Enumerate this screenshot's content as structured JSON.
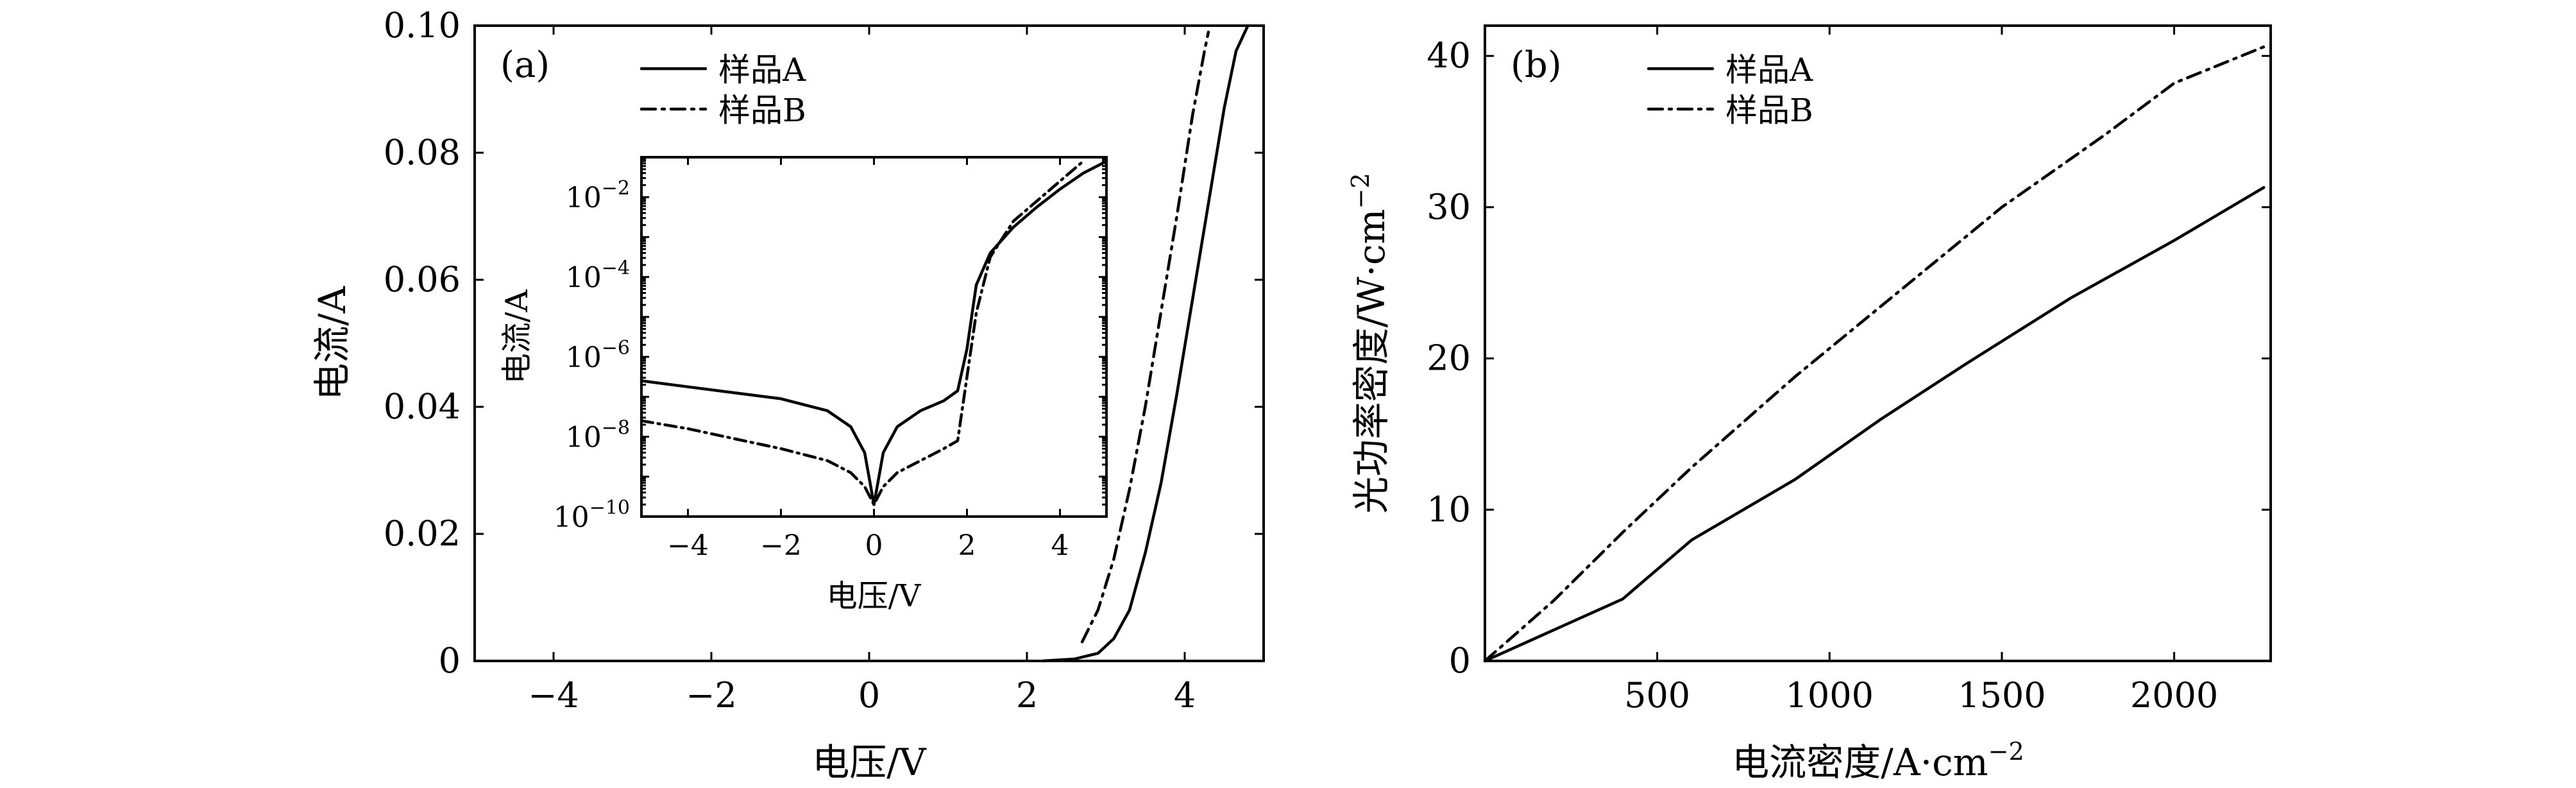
{
  "chart_data": [
    {
      "panel": "a",
      "type": "line",
      "label": "(a)",
      "xlabel": "电压/V",
      "ylabel": "电流/A",
      "xlim": [
        -5,
        5
      ],
      "ylim": [
        0,
        0.1
      ],
      "xticks": [
        -4,
        -2,
        0,
        2,
        4
      ],
      "xtick_labels": [
        "−4",
        "−2",
        "0",
        "2",
        "4"
      ],
      "yticks": [
        0,
        0.02,
        0.04,
        0.06,
        0.08,
        0.1
      ],
      "ytick_labels": [
        "0",
        "0.02",
        "0.04",
        "0.06",
        "0.08",
        "0.10"
      ],
      "legend": {
        "position": "top-left",
        "entries": [
          "样品A",
          "样品B"
        ]
      },
      "series": [
        {
          "name": "样品A",
          "style": "solid",
          "x": [
            2.2,
            2.6,
            2.9,
            3.1,
            3.3,
            3.5,
            3.7,
            3.9,
            4.1,
            4.3,
            4.5,
            4.65,
            4.8
          ],
          "y": [
            0,
            0.0003,
            0.0012,
            0.0035,
            0.008,
            0.017,
            0.028,
            0.042,
            0.057,
            0.072,
            0.087,
            0.096,
            0.1
          ]
        },
        {
          "name": "样品B",
          "style": "dashdot",
          "x": [
            2.7,
            2.9,
            3.1,
            3.3,
            3.5,
            3.7,
            3.9,
            4.1,
            4.25,
            4.3
          ],
          "y": [
            0.003,
            0.008,
            0.016,
            0.027,
            0.04,
            0.055,
            0.07,
            0.086,
            0.096,
            0.099
          ]
        }
      ],
      "inset": {
        "type": "line",
        "scale": "log",
        "xlabel": "电压/V",
        "ylabel": "电流/A",
        "xlim": [
          -5,
          5
        ],
        "ylim_exp": [
          -10,
          -1
        ],
        "xticks": [
          -4,
          -2,
          0,
          2,
          4
        ],
        "xtick_labels": [
          "−4",
          "−2",
          "0",
          "2",
          "4"
        ],
        "yticks_exp": [
          -10,
          -8,
          -6,
          -4,
          -2
        ],
        "ytick_mantissa": "10",
        "ytick_exponents": [
          "−10",
          "−8",
          "−6",
          "−4",
          "−2"
        ],
        "series": [
          {
            "name": "样品A",
            "style": "solid",
            "x": [
              -5,
              -4,
              -3,
              -2,
              -1,
              -0.5,
              -0.2,
              0,
              0.2,
              0.5,
              1,
              1.5,
              1.8,
              2.0,
              2.2,
              2.5,
              3,
              3.5,
              4,
              4.5,
              5
            ],
            "log10_y": [
              -6.6,
              -6.75,
              -6.9,
              -7.05,
              -7.35,
              -7.75,
              -8.4,
              -9.7,
              -8.4,
              -7.75,
              -7.35,
              -7.1,
              -6.85,
              -5.8,
              -4.2,
              -3.4,
              -2.75,
              -2.25,
              -1.8,
              -1.4,
              -1.1
            ]
          },
          {
            "name": "样品B",
            "style": "dashdot",
            "x": [
              -5,
              -4,
              -3,
              -2,
              -1,
              -0.5,
              -0.2,
              0,
              0.2,
              0.5,
              1,
              1.5,
              1.8,
              2.0,
              2.2,
              2.5,
              3,
              3.5,
              4,
              4.5
            ],
            "log10_y": [
              -7.6,
              -7.8,
              -8.05,
              -8.3,
              -8.6,
              -8.9,
              -9.25,
              -9.7,
              -9.25,
              -8.9,
              -8.6,
              -8.3,
              -8.1,
              -6.5,
              -4.9,
              -3.5,
              -2.6,
              -2.1,
              -1.6,
              -1.1
            ]
          }
        ]
      }
    },
    {
      "panel": "b",
      "type": "line",
      "label": "(b)",
      "xlabel": "电流密度/A·cm",
      "xlabel_sup": "−2",
      "ylabel": "光功率密度/W·cm",
      "ylabel_sup": "−2",
      "xlim": [
        0,
        2280
      ],
      "ylim": [
        0,
        42
      ],
      "xticks": [
        500,
        1000,
        1500,
        2000
      ],
      "xtick_labels": [
        "500",
        "1000",
        "1500",
        "2000"
      ],
      "yticks": [
        0,
        10,
        20,
        30,
        40
      ],
      "ytick_labels": [
        "0",
        "10",
        "20",
        "30",
        "40"
      ],
      "legend": {
        "position": "top-left",
        "entries": [
          "样品A",
          "样品B"
        ]
      },
      "series": [
        {
          "name": "样品A",
          "style": "solid",
          "x": [
            0,
            400,
            600,
            900,
            1150,
            1400,
            1700,
            2000,
            2260
          ],
          "y": [
            0,
            4.1,
            8,
            12,
            16,
            19.7,
            24,
            27.8,
            31.3
          ]
        },
        {
          "name": "样品B",
          "style": "dashdot",
          "x": [
            0,
            200,
            400,
            600,
            900,
            1200,
            1500,
            1800,
            2000,
            2260
          ],
          "y": [
            0,
            4,
            8.5,
            12.8,
            18.8,
            24.4,
            30,
            34.8,
            38.2,
            40.6
          ]
        }
      ]
    }
  ]
}
